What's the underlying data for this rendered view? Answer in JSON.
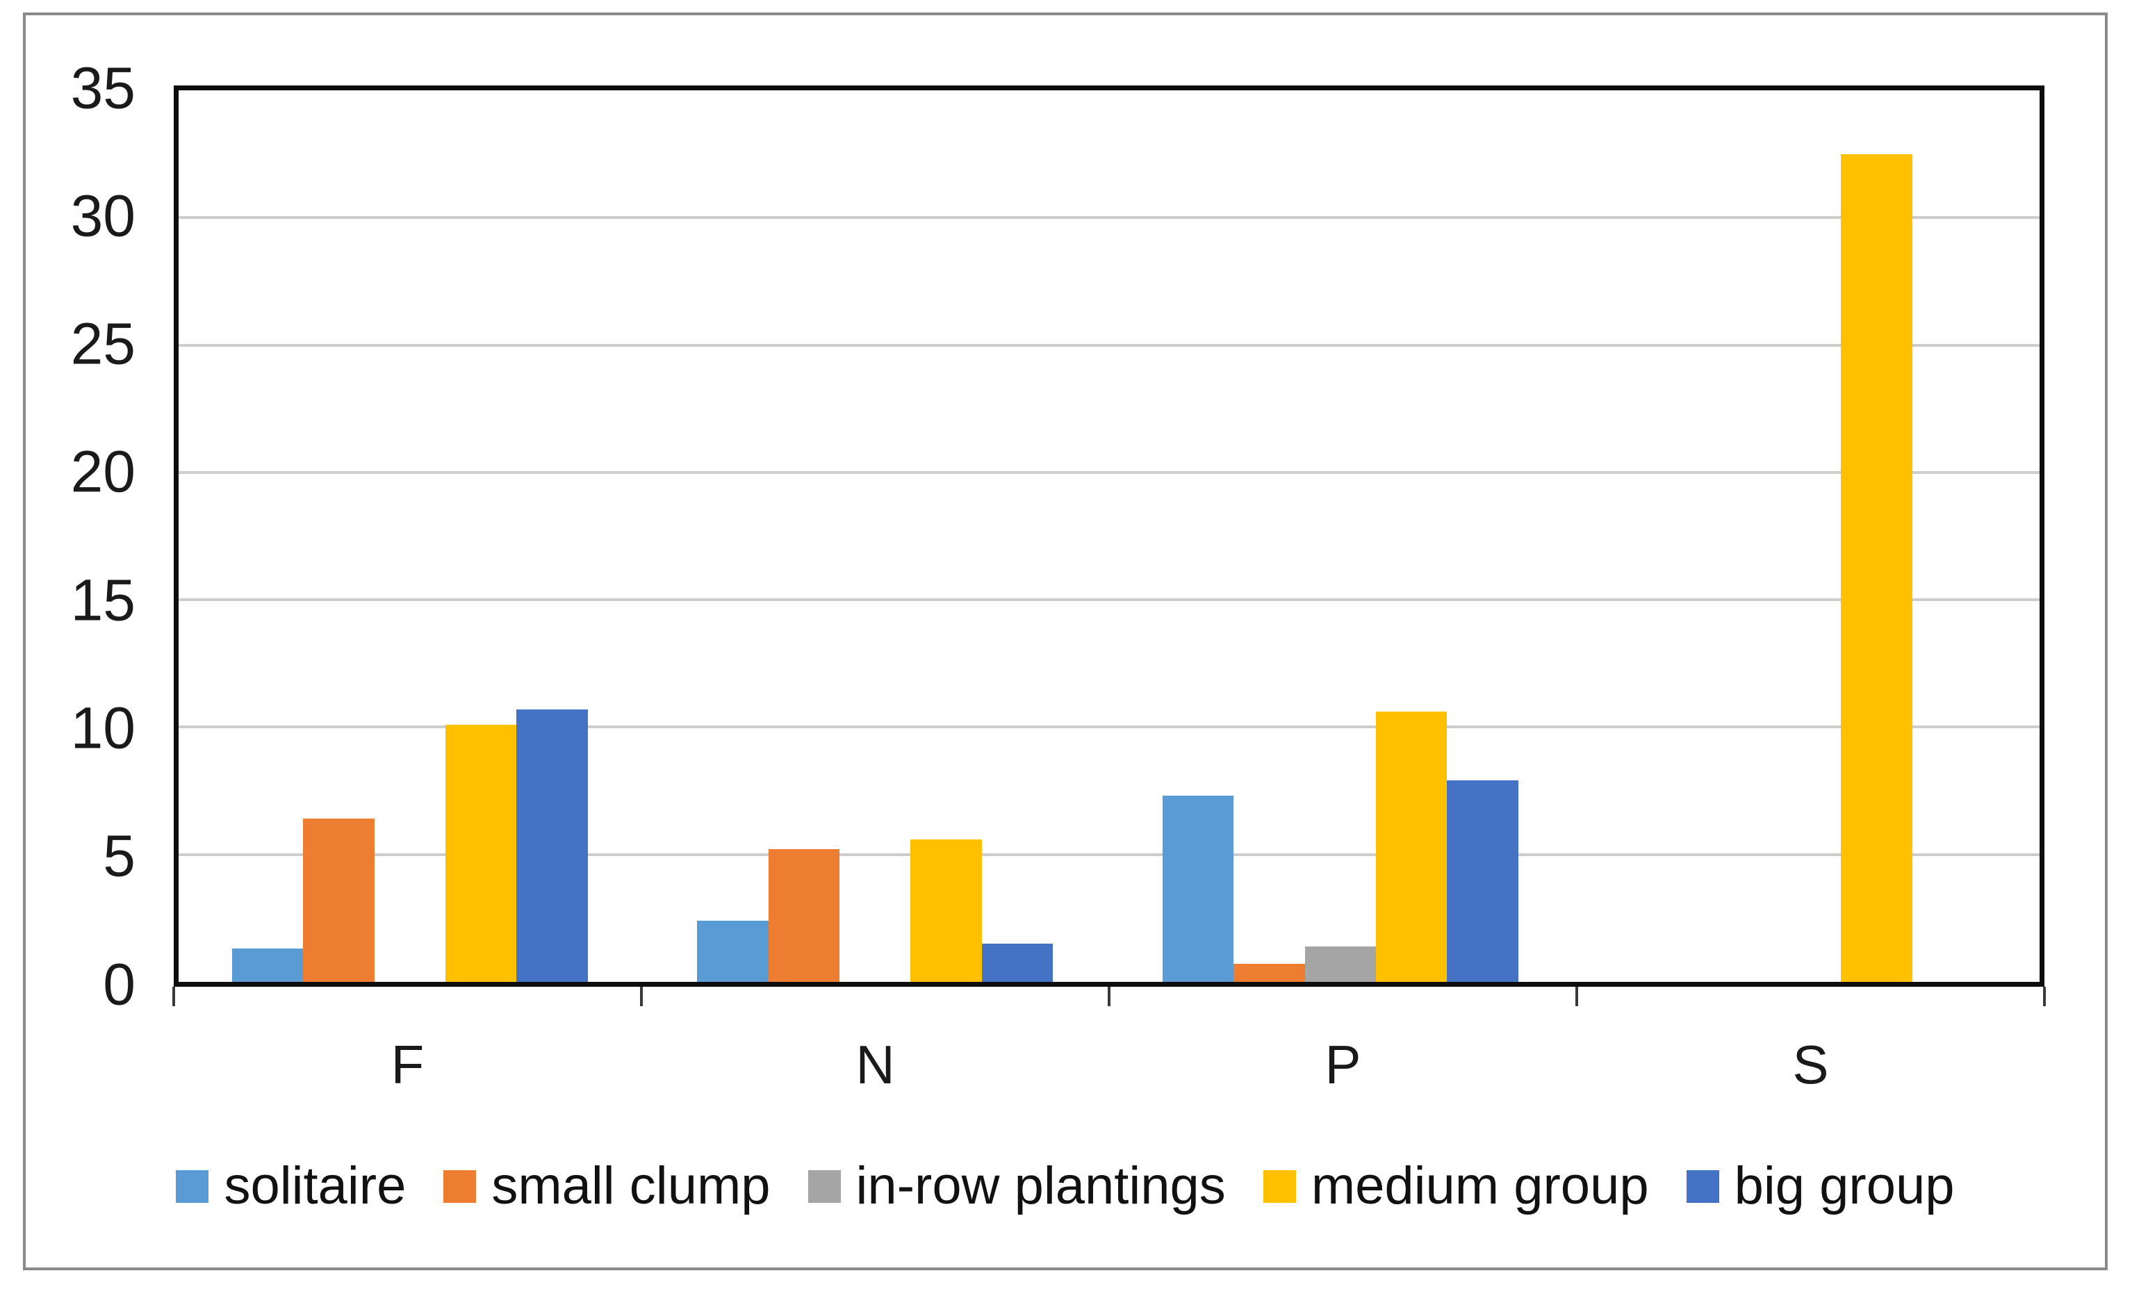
{
  "frame": {
    "border_color": "#8a8a8a",
    "background_color": "#ffffff"
  },
  "chart_data": {
    "type": "bar",
    "title": "",
    "xlabel": "",
    "ylabel": "",
    "categories": [
      "F",
      "N",
      "P",
      "S"
    ],
    "series": [
      {
        "name": "solitaire",
        "color": "#5B9BD5",
        "values": [
          1.3,
          2.4,
          7.3,
          0
        ]
      },
      {
        "name": "small clump",
        "color": "#ED7D31",
        "values": [
          6.4,
          5.2,
          0.7,
          0
        ]
      },
      {
        "name": "in-row plantings",
        "color": "#A5A5A5",
        "values": [
          0,
          0,
          1.4,
          0
        ]
      },
      {
        "name": "medium group",
        "color": "#FFC000",
        "values": [
          10.1,
          5.6,
          10.6,
          32.5
        ]
      },
      {
        "name": "big group",
        "color": "#4472C4",
        "values": [
          10.7,
          1.5,
          7.9,
          0
        ]
      }
    ],
    "ylim": [
      0,
      35
    ],
    "yticks": [
      0,
      5,
      10,
      15,
      20,
      25,
      30,
      35
    ],
    "grid": true,
    "gridline_color": "#cdcdcd",
    "axis_color": "#0d0d0d",
    "legend_position": "bottom",
    "legend_labels": [
      "solitaire",
      "small clump",
      "in-row plantings",
      "medium group",
      "big group"
    ]
  }
}
